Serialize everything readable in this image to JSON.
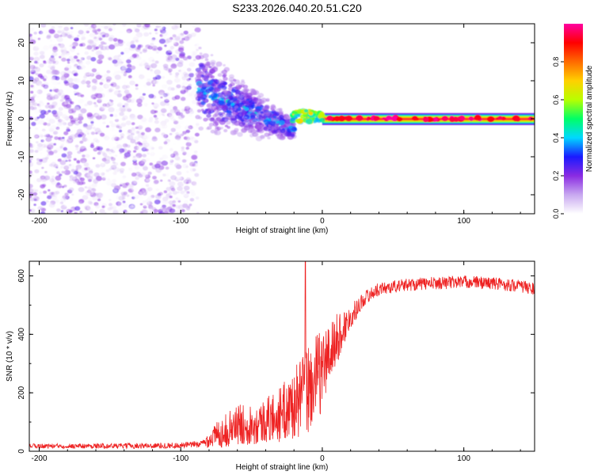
{
  "title": "S233.2026.040.20.51.C20",
  "chart_data": [
    {
      "type": "heatmap",
      "xlabel": "Height of straight line (km)",
      "ylabel": "Frequency (Hz)",
      "xlim": [
        -207,
        150
      ],
      "ylim": [
        -25,
        25
      ],
      "xticks": [
        -200,
        -100,
        0,
        100
      ],
      "yticks": [
        -20,
        -10,
        0,
        10,
        20
      ],
      "grid": false,
      "colorbar": {
        "label": "Normalized spectral amplitude",
        "range": [
          0,
          1
        ],
        "ticks": [
          0.0,
          0.2,
          0.4,
          0.6,
          0.8
        ],
        "colors": [
          "#ffffff",
          "#c8a8f0",
          "#8a2be2",
          "#1a1aff",
          "#00d8ff",
          "#00ff66",
          "#b8ff00",
          "#ffd000",
          "#ff6a00",
          "#ff0000",
          "#ff00a0"
        ]
      },
      "regions": [
        {
          "name": "noise",
          "x_range": [
            -207,
            -88
          ],
          "freq_range": [
            -25,
            25
          ],
          "amplitude_range": [
            0.0,
            0.25
          ]
        },
        {
          "name": "transition",
          "x_range": [
            -88,
            -20
          ],
          "freq_center_start": 8,
          "freq_center_end": -3,
          "amplitude_range": [
            0.1,
            0.45
          ]
        },
        {
          "name": "signal",
          "x_range": [
            0,
            150
          ],
          "freq": 0,
          "freq_width": 3,
          "amplitude_core": 0.95
        }
      ]
    },
    {
      "type": "line",
      "xlabel": "Height of straight line (km)",
      "ylabel": "SNR (10 * v/v)",
      "xlim": [
        -207,
        150
      ],
      "ylim": [
        0,
        650
      ],
      "xticks": [
        -200,
        -100,
        0,
        100
      ],
      "yticks": [
        0,
        200,
        400,
        600
      ],
      "grid": false,
      "series": [
        {
          "name": "SNR",
          "color": "#ee2222",
          "envelope": {
            "x": [
              -207,
              -150,
              -100,
              -85,
              -75,
              -60,
              -45,
              -30,
              -20,
              -10,
              0,
              10,
              20,
              30,
              40,
              60,
              80,
              100,
              120,
              140,
              150
            ],
            "mean": [
              18,
              18,
              20,
              25,
              55,
              90,
              95,
              125,
              160,
              210,
              280,
              380,
              460,
              525,
              555,
              570,
              575,
              580,
              575,
              565,
              555
            ],
            "spread": [
              8,
              9,
              10,
              12,
              45,
              70,
              70,
              95,
              120,
              160,
              140,
              90,
              40,
              25,
              22,
              22,
              22,
              22,
              22,
              22,
              22
            ]
          },
          "peak": {
            "x": -12,
            "y": 650
          }
        }
      ]
    }
  ]
}
